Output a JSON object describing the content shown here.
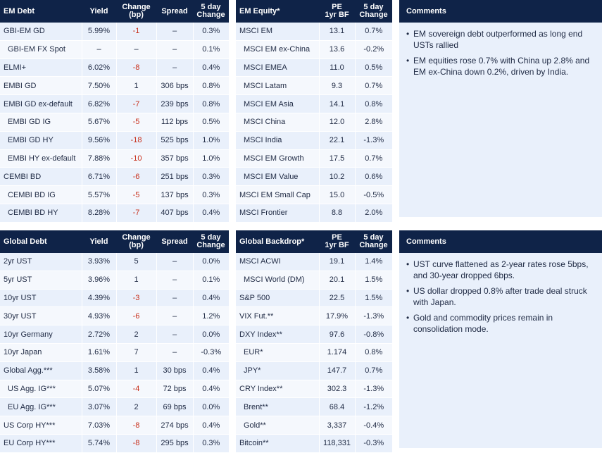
{
  "em_debt": {
    "headers": [
      "EM Debt",
      "Yield",
      "Change\n(bp)",
      "Spread",
      "5 day\nChange"
    ],
    "rows": [
      {
        "name": "GBI-EM GD",
        "indent": false,
        "yield": "5.99%",
        "change": "-1",
        "neg": true,
        "spread": "–",
        "five_day": "0.3%"
      },
      {
        "name": "GBI-EM FX Spot",
        "indent": true,
        "yield": "–",
        "change": "–",
        "neg": false,
        "spread": "–",
        "five_day": "0.1%"
      },
      {
        "name": "ELMI+",
        "indent": false,
        "yield": "6.02%",
        "change": "-8",
        "neg": true,
        "spread": "–",
        "five_day": "0.4%"
      },
      {
        "name": "EMBI GD",
        "indent": false,
        "yield": "7.50%",
        "change": "1",
        "neg": false,
        "spread": "306 bps",
        "five_day": "0.8%"
      },
      {
        "name": "EMBI GD ex-default",
        "indent": false,
        "yield": "6.82%",
        "change": "-7",
        "neg": true,
        "spread": "239 bps",
        "five_day": "0.8%"
      },
      {
        "name": "EMBI GD IG",
        "indent": true,
        "yield": "5.67%",
        "change": "-5",
        "neg": true,
        "spread": "112 bps",
        "five_day": "0.5%"
      },
      {
        "name": "EMBI GD HY",
        "indent": true,
        "yield": "9.56%",
        "change": "-18",
        "neg": true,
        "spread": "525 bps",
        "five_day": "1.0%"
      },
      {
        "name": "EMBI HY ex-default",
        "indent": true,
        "yield": "7.88%",
        "change": "-10",
        "neg": true,
        "spread": "357 bps",
        "five_day": "1.0%"
      },
      {
        "name": "CEMBI BD",
        "indent": false,
        "yield": "6.71%",
        "change": "-6",
        "neg": true,
        "spread": "251 bps",
        "five_day": "0.3%"
      },
      {
        "name": "CEMBI BD IG",
        "indent": true,
        "yield": "5.57%",
        "change": "-5",
        "neg": true,
        "spread": "137 bps",
        "five_day": "0.3%"
      },
      {
        "name": "CEMBI BD HY",
        "indent": true,
        "yield": "8.28%",
        "change": "-7",
        "neg": true,
        "spread": "407 bps",
        "five_day": "0.4%"
      }
    ]
  },
  "em_equity": {
    "headers": [
      "EM Equity*",
      "PE\n1yr BF",
      "5 day\nChange"
    ],
    "rows": [
      {
        "name": "MSCI EM",
        "indent": false,
        "pe": "13.1",
        "five_day": "0.7%"
      },
      {
        "name": "MSCI EM ex-China",
        "indent": true,
        "pe": "13.6",
        "five_day": "-0.2%"
      },
      {
        "name": "MSCI EMEA",
        "indent": true,
        "pe": "11.0",
        "five_day": "0.5%"
      },
      {
        "name": "MSCI Latam",
        "indent": true,
        "pe": "9.3",
        "five_day": "0.7%"
      },
      {
        "name": "MSCI EM Asia",
        "indent": true,
        "pe": "14.1",
        "five_day": "0.8%"
      },
      {
        "name": "MSCI China",
        "indent": true,
        "pe": "12.0",
        "five_day": "2.8%"
      },
      {
        "name": "MSCI India",
        "indent": true,
        "pe": "22.1",
        "five_day": "-1.3%"
      },
      {
        "name": "MSCI EM Growth",
        "indent": true,
        "pe": "17.5",
        "five_day": "0.7%"
      },
      {
        "name": "MSCI EM Value",
        "indent": true,
        "pe": "10.2",
        "five_day": "0.6%"
      },
      {
        "name": "MSCI EM Small Cap",
        "indent": false,
        "pe": "15.0",
        "five_day": "-0.5%"
      },
      {
        "name": "MSCI Frontier",
        "indent": false,
        "pe": "8.8",
        "five_day": "2.0%"
      }
    ]
  },
  "comments_top": {
    "title": "Comments",
    "items": [
      "EM sovereign debt outperformed as long end USTs rallied",
      "EM equities rose 0.7% with China up 2.8% and EM ex-China down 0.2%, driven by India."
    ]
  },
  "global_debt": {
    "headers": [
      "Global Debt",
      "Yield",
      "Change\n(bp)",
      "Spread",
      "5 day\nChange"
    ],
    "rows": [
      {
        "name": "2yr UST",
        "indent": false,
        "yield": "3.93%",
        "change": "5",
        "neg": false,
        "spread": "–",
        "five_day": "0.0%"
      },
      {
        "name": "5yr UST",
        "indent": false,
        "yield": "3.96%",
        "change": "1",
        "neg": false,
        "spread": "–",
        "five_day": "0.1%"
      },
      {
        "name": "10yr UST",
        "indent": false,
        "yield": "4.39%",
        "change": "-3",
        "neg": true,
        "spread": "–",
        "five_day": "0.4%"
      },
      {
        "name": "30yr UST",
        "indent": false,
        "yield": "4.93%",
        "change": "-6",
        "neg": true,
        "spread": "–",
        "five_day": "1.2%"
      },
      {
        "name": "10yr Germany",
        "indent": false,
        "yield": "2.72%",
        "change": "2",
        "neg": false,
        "spread": "–",
        "five_day": "0.0%"
      },
      {
        "name": "10yr Japan",
        "indent": false,
        "yield": "1.61%",
        "change": "7",
        "neg": false,
        "spread": "–",
        "five_day": "-0.3%"
      },
      {
        "name": "Global Agg.***",
        "indent": false,
        "yield": "3.58%",
        "change": "1",
        "neg": false,
        "spread": "30 bps",
        "five_day": "0.4%"
      },
      {
        "name": "US Agg. IG***",
        "indent": true,
        "yield": "5.07%",
        "change": "-4",
        "neg": true,
        "spread": "72 bps",
        "five_day": "0.4%"
      },
      {
        "name": "EU Agg. IG***",
        "indent": true,
        "yield": "3.07%",
        "change": "2",
        "neg": false,
        "spread": "69 bps",
        "five_day": "0.0%"
      },
      {
        "name": "US Corp HY***",
        "indent": false,
        "yield": "7.03%",
        "change": "-8",
        "neg": true,
        "spread": "274 bps",
        "five_day": "0.4%"
      },
      {
        "name": "EU Corp HY***",
        "indent": false,
        "yield": "5.74%",
        "change": "-8",
        "neg": true,
        "spread": "295 bps",
        "five_day": "0.3%"
      }
    ]
  },
  "global_backdrop": {
    "headers": [
      "Global Backdrop*",
      "PE\n1yr BF",
      "5 day\nChange"
    ],
    "rows": [
      {
        "name": "MSCI ACWI",
        "indent": false,
        "pe": "19.1",
        "five_day": "1.4%"
      },
      {
        "name": "MSCI World (DM)",
        "indent": true,
        "pe": "20.1",
        "five_day": "1.5%"
      },
      {
        "name": "S&P 500",
        "indent": false,
        "pe": "22.5",
        "five_day": "1.5%"
      },
      {
        "name": "VIX Fut.**",
        "indent": false,
        "pe": "17.9%",
        "five_day": "-1.3%"
      },
      {
        "name": "DXY Index**",
        "indent": false,
        "pe": "97.6",
        "five_day": "-0.8%"
      },
      {
        "name": "EUR*",
        "indent": true,
        "pe": "1.174",
        "five_day": "0.8%"
      },
      {
        "name": "JPY*",
        "indent": true,
        "pe": "147.7",
        "five_day": "0.7%"
      },
      {
        "name": "CRY Index**",
        "indent": false,
        "pe": "302.3",
        "five_day": "-1.3%"
      },
      {
        "name": "Brent**",
        "indent": true,
        "pe": "68.4",
        "five_day": "-1.2%"
      },
      {
        "name": "Gold**",
        "indent": true,
        "pe": "3,337",
        "five_day": "-0.4%"
      },
      {
        "name": "Bitcoin**",
        "indent": false,
        "pe": "118,331",
        "five_day": "-0.3%"
      }
    ]
  },
  "comments_bottom": {
    "title": "Comments",
    "items": [
      "UST curve flattened as 2-year rates rose 5bps, and 30-year dropped 6bps.",
      "US dollar dropped 0.8% after trade deal struck with Japan.",
      "Gold and commodity prices remain in consolidation mode."
    ]
  }
}
